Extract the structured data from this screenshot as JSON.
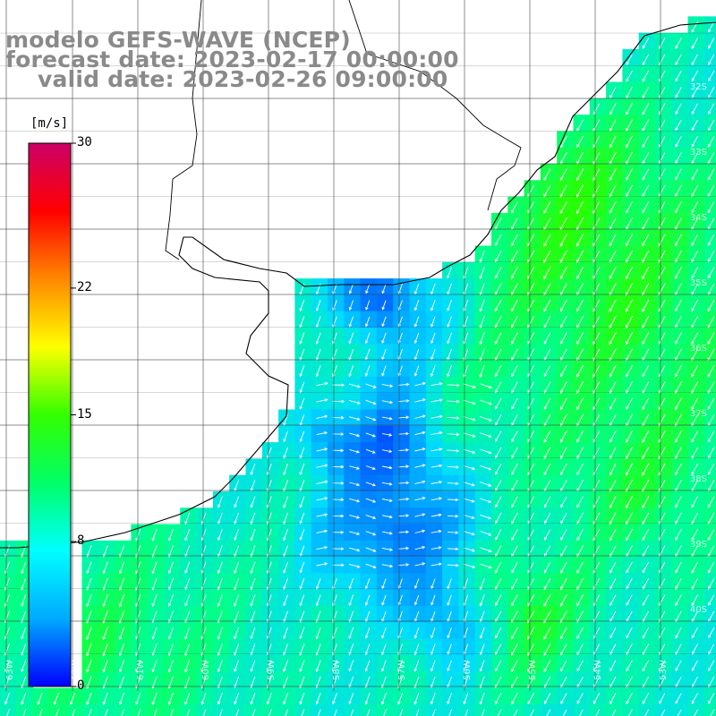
{
  "title": {
    "model": "modelo GEFS-WAVE (NCEP)",
    "forecast": "forecast date: 2023-02-17 00:00:00",
    "valid": "valid date: 2023-02-26 09:00:00"
  },
  "colorbar": {
    "unit": "[m/s]",
    "ticks": [
      {
        "label": "30",
        "value": 30
      },
      {
        "label": "22",
        "value": 22
      },
      {
        "label": "15",
        "value": 15
      },
      {
        "label": "8",
        "value": 8
      },
      {
        "label": "0",
        "value": 0
      }
    ],
    "colors": [
      "#0000ff",
      "#00aaff",
      "#00ffff",
      "#00ff66",
      "#33ff00",
      "#ffff00",
      "#ff8800",
      "#ff0000",
      "#cc0066"
    ]
  },
  "axes": {
    "lat_labels": [
      "32S",
      "33S",
      "34S",
      "35S",
      "36S",
      "37S",
      "38S",
      "39S",
      "40S"
    ],
    "lon_labels": [
      "63W",
      "62W",
      "61W",
      "60W",
      "59W",
      "58W",
      "57W",
      "56W",
      "55W",
      "54W",
      "53W"
    ]
  },
  "colors": {
    "land": "#ffffff",
    "coast": "#000000",
    "grid": "#444444",
    "arrow": "#ffffff",
    "title": "#8a8a8a"
  }
}
